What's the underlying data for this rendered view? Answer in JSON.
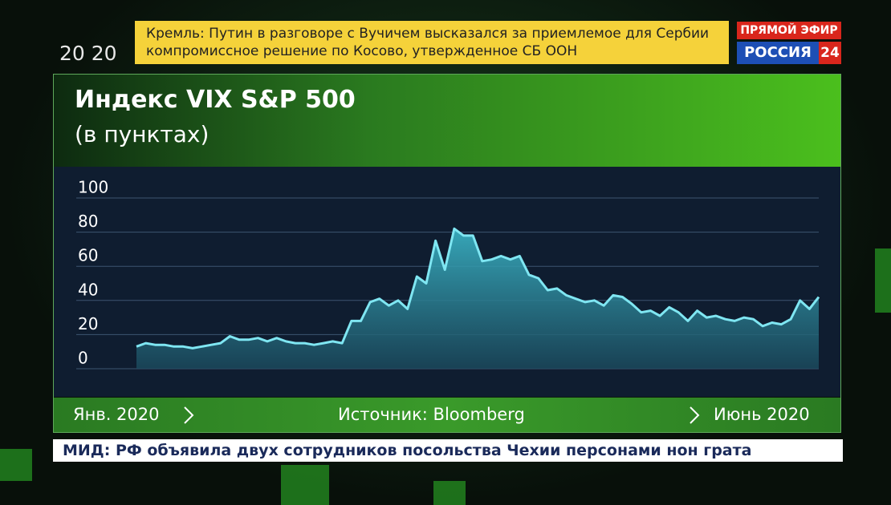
{
  "clock": "20 20",
  "ticker": [
    "Кремль: Путин в разговоре с Вучичем высказался за приемлемое для Сербии",
    "компромиссное решение по Косово, утвержденное СБ ООН"
  ],
  "live_badge": "ПРЯМОЙ ЭФИР",
  "channel": "РОССИЯ",
  "channel_number": "24",
  "chart_data": {
    "type": "area",
    "title": "Индекс VIX S&P 500",
    "subtitle": "(в пунктах)",
    "x_start_label": "Янв. 2020",
    "x_end_label": "Июнь 2020",
    "source": "Источник: Bloomberg",
    "color": "#7fe6f2",
    "values": [
      13,
      15,
      14,
      14,
      13,
      13,
      12,
      13,
      14,
      15,
      19,
      17,
      17,
      18,
      16,
      18,
      16,
      15,
      15,
      14,
      15,
      16,
      15,
      28,
      28,
      39,
      41,
      37,
      40,
      35,
      54,
      50,
      75,
      58,
      82,
      78,
      78,
      63,
      64,
      66,
      64,
      66,
      55,
      53,
      46,
      47,
      43,
      41,
      39,
      40,
      37,
      43,
      42,
      38,
      33,
      34,
      31,
      36,
      33,
      28,
      34,
      30,
      31,
      29,
      28,
      30,
      29,
      25,
      27,
      26,
      29,
      40,
      35,
      42
    ],
    "ylim": [
      0,
      100
    ],
    "yticks": [
      0,
      20,
      40,
      60,
      80,
      100
    ],
    "grid": true
  },
  "news": "МИД: РФ объявила двух сотрудников посольства Чехии персонами нон грата"
}
